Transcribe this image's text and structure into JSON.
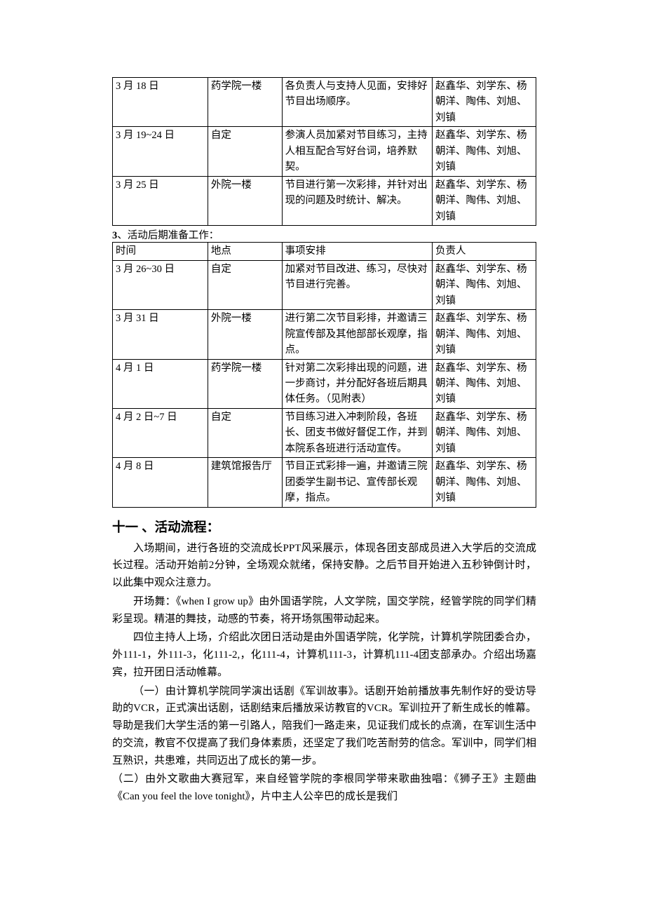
{
  "table1": {
    "columns_widths": [
      "22.5%",
      "17.5%",
      "35.5%",
      "24.5%"
    ],
    "rows": [
      {
        "date": "3 月 18 日",
        "place": "药学院一楼",
        "task": "各负责人与支持人见面，安排好节目出场顺序。",
        "owners": "赵鑫华、刘学东、杨朝洋、陶伟、刘旭、刘镇"
      },
      {
        "date": "3 月 19~24 日",
        "place": "自定",
        "task": "参演人员加紧对节目练习，主持人相互配合写好台词，培养默契。",
        "owners": "赵鑫华、刘学东、杨朝洋、陶伟、刘旭、刘镇"
      },
      {
        "date": "3 月 25 日",
        "place": "外院一楼",
        "task": "节目进行第一次彩排，并针对出现的问题及时统计、解决。",
        "owners": "赵鑫华、刘学东、杨朝洋、陶伟、刘旭、刘镇"
      }
    ]
  },
  "section3_label_num": "3",
  "section3_label_text": "、活动后期准备工作：",
  "table2": {
    "header": {
      "c1": "时间",
      "c2": "地点",
      "c3": "事项安排",
      "c4": "负责人"
    },
    "rows": [
      {
        "date": "3 月 26~30 日",
        "place": "自定",
        "task": "加紧对节目改进、练习，尽快对节目进行完善。",
        "owners": "赵鑫华、刘学东、杨朝洋、陶伟、刘旭、刘镇"
      },
      {
        "date": "3 月 31 日",
        "place": "外院一楼",
        "task": "进行第二次节目彩排，并邀请三院宣传部及其他部部长观摩，指点。",
        "owners": "赵鑫华、刘学东、杨朝洋、陶伟、刘旭、刘镇"
      },
      {
        "date": "4 月 1 日",
        "place": "药学院一楼",
        "task": "针对第二次彩排出现的问题，进一步商讨，并分配好各班后期具体任务。（见附表）",
        "owners": "赵鑫华、刘学东、杨朝洋、陶伟、刘旭、刘镇"
      },
      {
        "date": "4 月 2 日~7 日",
        "place": "自定",
        "task": "节目练习进入冲刺阶段，各班长、团支书做好督促工作，并到本院系各班进行活动宣传。",
        "owners": "赵鑫华、刘学东、杨朝洋、陶伟、刘旭、刘镇"
      },
      {
        "date": "4 月 8 日",
        "place": "建筑馆报告厅",
        "task": "节目正式彩排一遍，并邀请三院团委学生副书记、宣传部长观摩，指点。",
        "owners": "赵鑫华、刘学东、杨朝洋、陶伟、刘旭、刘镇"
      }
    ]
  },
  "heading11": "十一 、活动流程：",
  "paragraphs": {
    "p1": "入场期间，进行各班的交流成长PPT风采展示，体现各团支部成员进入大学后的交流成长过程。活动开始前2分钟，全场观众就绪，保持安静。之后节目开始进入五秒钟倒计时，以此集中观众注意力。",
    "p2": "开场舞：《when I grow up》由外国语学院，人文学院，国交学院，经管学院的同学们精彩呈现。精湛的舞技，动感的节奏，将开场氛围带动起来。",
    "p3": "四位主持人上场，介绍此次团日活动是由外国语学院，化学院，计算机学院团委合办，外111-1，外111-3，化111-2,，化111-4，计算机111-3，计算机111-4团支部承办。介绍出场嘉宾，拉开团日活动帷幕。",
    "p4": "（一）由计算机学院同学演出话剧《军训故事》。话剧开始前播放事先制作好的受访导助的VCR，正式演出话剧，话剧结束后播放采访教官的VCR。军训拉开了新生成长的帷幕。导助是我们大学生活的第一引路人，陪我们一路走来，见证我们成长的点滴，在军训生活中的交流，教官不仅提高了我们身体素质，还坚定了我们吃苦耐劳的信念。军训中，同学们相互熟识，共患难，共同迈出了成长的第一步。",
    "p5": "（二）由外文歌曲大赛冠军，来自经管学院的李根同学带来歌曲独唱：《狮子王》主题曲《Can you feel the love tonight》，片中主人公辛巴的成长是我们"
  }
}
